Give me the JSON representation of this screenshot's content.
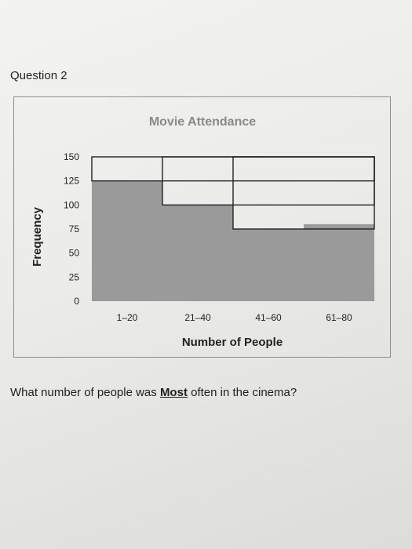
{
  "question": {
    "label": "Question 2"
  },
  "prompt": {
    "before": "What number of people was ",
    "emphasis": "Most",
    "after": " often in the cinema?"
  },
  "colors": {
    "bar": "#9a9a9a",
    "title": "#8a8a8a"
  },
  "chart_data": {
    "type": "bar",
    "title": "Movie Attendance",
    "xlabel": "Number of People",
    "ylabel": "Frequency",
    "categories": [
      "1–20",
      "21–40",
      "41–60",
      "61–80"
    ],
    "values": [
      125,
      100,
      75,
      80
    ],
    "yticks": [
      0,
      25,
      50,
      75,
      100,
      125,
      150
    ],
    "ylim": [
      0,
      150
    ],
    "grid": false,
    "legend": "none"
  }
}
